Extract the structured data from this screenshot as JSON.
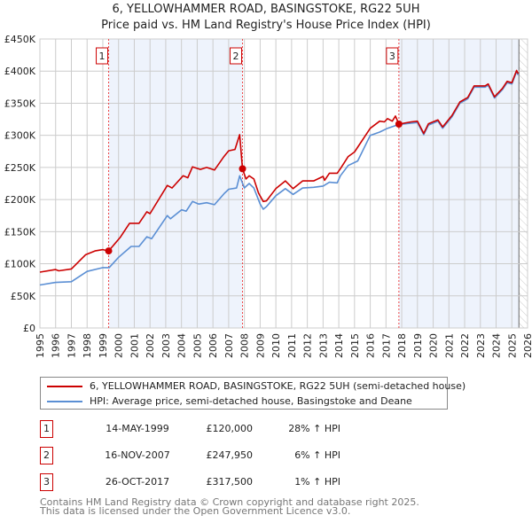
{
  "chart_data": {
    "type": "line",
    "title": "6, YELLOWHAMMER ROAD, BASINGSTOKE, RG22 5UH",
    "subtitle": "Price paid vs. HM Land Registry's House Price Index (HPI)",
    "xlabel": "",
    "ylabel": "",
    "xlim": [
      1995,
      2026
    ],
    "ylim": [
      0,
      450000
    ],
    "grid": true,
    "x_ticks": [
      "1995",
      "1996",
      "1997",
      "1998",
      "1999",
      "2000",
      "2001",
      "2002",
      "2003",
      "2004",
      "2005",
      "2006",
      "2007",
      "2008",
      "2009",
      "2010",
      "2011",
      "2012",
      "2013",
      "2014",
      "2015",
      "2016",
      "2017",
      "2018",
      "2019",
      "2020",
      "2021",
      "2022",
      "2023",
      "2024",
      "2025",
      "2026"
    ],
    "y_ticks": [
      {
        "v": 0,
        "label": "£0"
      },
      {
        "v": 50000,
        "label": "£50K"
      },
      {
        "v": 100000,
        "label": "£100K"
      },
      {
        "v": 150000,
        "label": "£150K"
      },
      {
        "v": 200000,
        "label": "£200K"
      },
      {
        "v": 250000,
        "label": "£250K"
      },
      {
        "v": 300000,
        "label": "£300K"
      },
      {
        "v": 350000,
        "label": "£350K"
      },
      {
        "v": 400000,
        "label": "£400K"
      },
      {
        "v": 450000,
        "label": "£450K"
      }
    ],
    "shaded_ranges": [
      [
        1999.37,
        2007.88
      ],
      [
        2017.82,
        2025.45
      ]
    ],
    "forecast_start": 2025.45,
    "series": [
      {
        "name": "6, YELLOWHAMMER ROAD, BASINGSTOKE, RG22 5UH (semi-detached house)",
        "color": "#cc0000",
        "x": [
          1995.0,
          1996.0,
          1996.2,
          1997.0,
          1997.9,
          1998.5,
          1999.0,
          1999.37,
          2000.1,
          2000.7,
          2001.3,
          2001.8,
          2002.0,
          2003.1,
          2003.4,
          2004.1,
          2004.4,
          2004.7,
          2005.2,
          2005.6,
          2006.1,
          2006.7,
          2007.0,
          2007.4,
          2007.7,
          2007.88,
          2008.1,
          2008.3,
          2008.6,
          2008.9,
          2009.2,
          2009.4,
          2010.0,
          2010.6,
          2011.1,
          2011.7,
          2012.4,
          2013.0,
          2013.1,
          2013.4,
          2013.9,
          2014.1,
          2014.6,
          2015.0,
          2016.0,
          2016.6,
          2016.9,
          2017.1,
          2017.4,
          2017.6,
          2017.82,
          2018.6,
          2019.0,
          2019.4,
          2019.7,
          2020.3,
          2020.6,
          2021.2,
          2021.7,
          2022.2,
          2022.6,
          2023.3,
          2023.5,
          2023.9,
          2024.4,
          2024.7,
          2025.0,
          2025.3,
          2025.4
        ],
        "values": [
          87000,
          91000,
          89000,
          92000,
          114000,
          120000,
          122000,
          120000,
          141000,
          163000,
          163000,
          181000,
          178000,
          222000,
          218000,
          237000,
          234000,
          251000,
          247000,
          250000,
          246000,
          267000,
          276000,
          278000,
          301000,
          247950,
          232000,
          237000,
          232000,
          210000,
          197000,
          198000,
          217000,
          229000,
          217000,
          229000,
          229000,
          236000,
          230000,
          241000,
          241000,
          248000,
          267000,
          274000,
          311000,
          322000,
          321000,
          326000,
          322000,
          330000,
          317500,
          321000,
          322000,
          303000,
          318000,
          324000,
          313000,
          331000,
          352000,
          359000,
          377000,
          377000,
          380000,
          360000,
          373000,
          384000,
          382000,
          401000,
          396000
        ]
      },
      {
        "name": "HPI: Average price, semi-detached house, Basingstoke and Deane",
        "color": "#5b8fd4",
        "x": [
          1995.0,
          1996.0,
          1997.0,
          1998.0,
          1999.0,
          1999.4,
          2000.0,
          2000.8,
          2001.3,
          2001.8,
          2002.1,
          2003.1,
          2003.3,
          2004.0,
          2004.3,
          2004.7,
          2005.1,
          2005.6,
          2006.1,
          2006.7,
          2007.0,
          2007.5,
          2007.7,
          2008.0,
          2008.3,
          2008.6,
          2009.0,
          2009.2,
          2009.4,
          2010.0,
          2010.6,
          2011.1,
          2011.7,
          2012.4,
          2013.0,
          2013.4,
          2013.9,
          2014.1,
          2014.6,
          2015.2,
          2016.0,
          2016.6,
          2017.1,
          2017.82,
          2018.6,
          2019.0,
          2019.4,
          2019.7,
          2020.3,
          2020.6,
          2021.2,
          2021.7,
          2022.2,
          2022.6,
          2023.3,
          2023.5,
          2023.9,
          2024.4,
          2024.7,
          2025.0,
          2025.3,
          2025.4
        ],
        "values": [
          67000,
          71000,
          72000,
          88000,
          94000,
          94000,
          110000,
          127000,
          127000,
          142000,
          139000,
          175000,
          170000,
          184000,
          182000,
          197000,
          193000,
          195000,
          192000,
          209000,
          216000,
          218000,
          237000,
          218000,
          225000,
          218000,
          193000,
          185000,
          189000,
          206000,
          217000,
          208000,
          218000,
          219000,
          221000,
          227000,
          226000,
          237000,
          253000,
          260000,
          300000,
          305000,
          311000,
          317000,
          319000,
          320000,
          301000,
          316000,
          322000,
          311000,
          329000,
          350000,
          357000,
          375000,
          375000,
          378000,
          358000,
          371000,
          382000,
          380000,
          399000,
          394000
        ]
      }
    ],
    "sales": [
      {
        "n": "1",
        "x": 1999.37,
        "value": 120000,
        "date": "14-MAY-1999",
        "price": "£120,000",
        "pct": "28% ↑ HPI"
      },
      {
        "n": "2",
        "x": 2007.88,
        "value": 247950,
        "date": "16-NOV-2007",
        "price": "£247,950",
        "pct": "6% ↑ HPI"
      },
      {
        "n": "3",
        "x": 2017.82,
        "value": 317500,
        "date": "26-OCT-2017",
        "price": "£317,500",
        "pct": "1% ↑ HPI"
      }
    ]
  },
  "header": {
    "title": "6, YELLOWHAMMER ROAD, BASINGSTOKE, RG22 5UH",
    "subtitle": "Price paid vs. HM Land Registry's House Price Index (HPI)"
  },
  "legend": {
    "property": "6, YELLOWHAMMER ROAD, BASINGSTOKE, RG22 5UH (semi-detached house)",
    "hpi": "HPI: Average price, semi-detached house, Basingstoke and Deane"
  },
  "footer": {
    "line1": "Contains HM Land Registry data © Crown copyright and database right 2025.",
    "line2": "This data is licensed under the Open Government Licence v3.0."
  }
}
